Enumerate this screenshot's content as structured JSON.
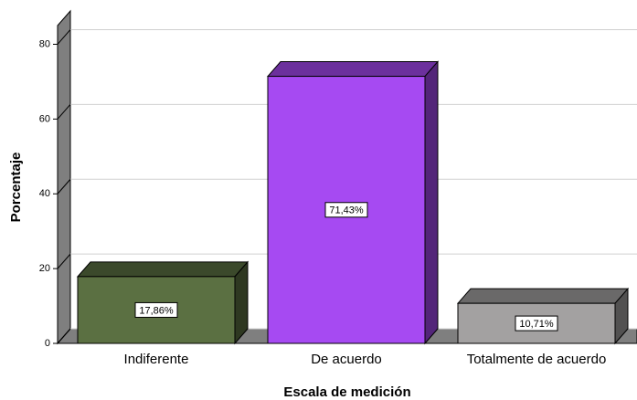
{
  "chart_data": {
    "type": "bar3d",
    "x_label": "Escala de medición",
    "y_label": "Porcentaje",
    "categories": [
      "Indiferente",
      "De acuerdo",
      "Totalmente de acuerdo"
    ],
    "values": [
      17.86,
      71.43,
      10.71
    ],
    "value_labels": [
      "17,86%",
      "71,43%",
      "10,71%"
    ],
    "colors": [
      "#5b7042",
      "#a64af2",
      "#a3a1a1"
    ],
    "ylim": [
      0,
      85
    ],
    "yticks": [
      0,
      20,
      40,
      60,
      80
    ],
    "grid": true
  }
}
